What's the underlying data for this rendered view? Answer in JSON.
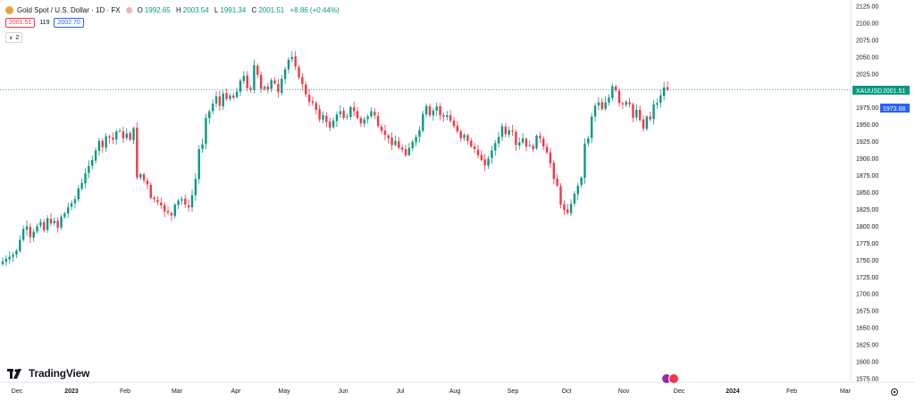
{
  "header": {
    "symbol": "Gold Spot / U.S. Dollar · 1D · FX",
    "o_label": "O",
    "o": "1992.65",
    "h_label": "H",
    "h": "2003.54",
    "l_label": "L",
    "l": "1991.34",
    "c_label": "C",
    "c": "2001.51",
    "change": "+8.86 (+0.44%)"
  },
  "quote": {
    "bid": "2001.51",
    "spread": "119",
    "ask": "2002.70"
  },
  "indicators": {
    "count": "2"
  },
  "brand": "TradingView",
  "colors": {
    "up": "#089981",
    "down": "#f23645",
    "price_line": "#089981",
    "blue_tag": "#2962ff"
  },
  "chart_data": {
    "type": "candlestick",
    "symbol": "XAUUSD",
    "interval": "1D",
    "ylim": [
      1575,
      2125
    ],
    "y_ticks": [
      "2125.00",
      "2100.00",
      "2075.00",
      "2050.00",
      "2025.00",
      "2000.00",
      "1975.00",
      "1950.00",
      "1925.00",
      "1900.00",
      "1875.00",
      "1850.00",
      "1825.00",
      "1800.00",
      "1775.00",
      "1750.00",
      "1725.00",
      "1700.00",
      "1675.00",
      "1650.00",
      "1625.00",
      "1600.00",
      "1575.00"
    ],
    "x_ticks": [
      "Dec",
      "2023",
      "Feb",
      "Mar",
      "Apr",
      "May",
      "Jun",
      "Jul",
      "Aug",
      "Sep",
      "Oct",
      "Nov",
      "Dec",
      "2024",
      "Feb",
      "Mar"
    ],
    "last_price": {
      "label": "XAUUSD",
      "value": "2001.51"
    },
    "blue_label": "1973.68",
    "closes": [
      1748,
      1752,
      1755,
      1758,
      1764,
      1780,
      1796,
      1800,
      1784,
      1792,
      1800,
      1806,
      1794,
      1812,
      1804,
      1808,
      1798,
      1814,
      1819,
      1828,
      1834,
      1840,
      1856,
      1864,
      1878,
      1889,
      1898,
      1912,
      1926,
      1917,
      1933,
      1931,
      1928,
      1940,
      1941,
      1930,
      1937,
      1928,
      1945,
      1872,
      1877,
      1868,
      1862,
      1842,
      1840,
      1836,
      1831,
      1822,
      1820,
      1816,
      1832,
      1838,
      1840,
      1832,
      1828,
      1846,
      1870,
      1914,
      1921,
      1960,
      1970,
      1981,
      1992,
      1978,
      1996,
      1988,
      1993,
      1990,
      1999,
      2015,
      2022,
      2004,
      2002,
      2038,
      2024,
      2003,
      2006,
      2002,
      2016,
      2011,
      1998,
      2018,
      2032,
      2046,
      2050,
      2036,
      2020,
      2010,
      1995,
      1984,
      1982,
      1972,
      1958,
      1964,
      1954,
      1946,
      1956,
      1965,
      1970,
      1960,
      1962,
      1976,
      1970,
      1960,
      1952,
      1958,
      1962,
      1970,
      1964,
      1948,
      1941,
      1935,
      1930,
      1920,
      1926,
      1916,
      1913,
      1905,
      1916,
      1925,
      1932,
      1942,
      1966,
      1978,
      1964,
      1971,
      1977,
      1964,
      1962,
      1964,
      1956,
      1948,
      1940,
      1930,
      1935,
      1926,
      1918,
      1914,
      1905,
      1898,
      1890,
      1900,
      1912,
      1923,
      1932,
      1948,
      1936,
      1942,
      1940,
      1920,
      1924,
      1930,
      1918,
      1920,
      1914,
      1934,
      1930,
      1918,
      1909,
      1893,
      1870,
      1860,
      1832,
      1824,
      1820,
      1833,
      1848,
      1860,
      1872,
      1922,
      1930,
      1962,
      1978,
      1983,
      1973,
      1983,
      1990,
      2007,
      2001,
      1982,
      1980,
      1984,
      1980,
      1960,
      1972,
      1957,
      1944,
      1962,
      1958,
      1980,
      1982,
      1993,
      2005,
      2001.5
    ]
  }
}
